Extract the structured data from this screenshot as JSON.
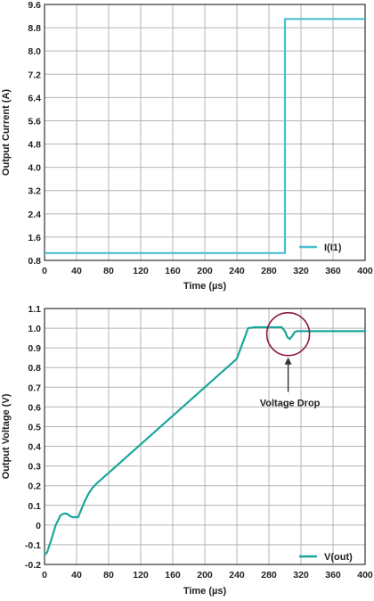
{
  "colors": {
    "series": "#1aa79a",
    "legend_i": "#48c0cf",
    "grid": "#b4b4b4",
    "frame": "#333333",
    "annotation": "#8b1a3a"
  },
  "chart_data": [
    {
      "type": "line",
      "xlabel": "Time (µs)",
      "ylabel": "Output Current (A)",
      "xlim": [
        0,
        400
      ],
      "ylim": [
        0.8,
        9.6
      ],
      "x_ticks": [
        "0",
        "40",
        "80",
        "120",
        "160",
        "200",
        "240",
        "280",
        "320",
        "360",
        "400"
      ],
      "y_ticks": [
        "0.8",
        "1.6",
        "2.4",
        "3.2",
        "4.0",
        "4.8",
        "5.6",
        "6.4",
        "7.2",
        "8.0",
        "8.8",
        "9.6"
      ],
      "grid": true,
      "legend_position": "bottom-right",
      "series": [
        {
          "name": "I(I1)",
          "x": [
            0,
            300,
            300,
            400
          ],
          "y": [
            1.05,
            1.05,
            9.1,
            9.1
          ]
        }
      ]
    },
    {
      "type": "line",
      "xlabel": "Time (µs)",
      "ylabel": "Output Voltage (V)",
      "xlim": [
        0,
        400
      ],
      "ylim": [
        -0.2,
        1.1
      ],
      "x_ticks": [
        "0",
        "40",
        "80",
        "120",
        "160",
        "200",
        "240",
        "280",
        "320",
        "360",
        "400"
      ],
      "y_ticks": [
        "-0.2",
        "-0.1",
        "0",
        "0.1",
        "0.2",
        "0.3",
        "0.4",
        "0.5",
        "0.6",
        "0.7",
        "0.8",
        "0.9",
        "1.0",
        "1.1"
      ],
      "grid": true,
      "legend_position": "bottom-right",
      "series": [
        {
          "name": "V(out)",
          "x": [
            0,
            3,
            8,
            14,
            20,
            24,
            28,
            32,
            35,
            38,
            42,
            46,
            50,
            55,
            60,
            66,
            80,
            120,
            160,
            200,
            240,
            254,
            262,
            296,
            300,
            303,
            306,
            309,
            312,
            315,
            320,
            400
          ],
          "y": [
            -0.15,
            -0.14,
            -0.08,
            0.0,
            0.05,
            0.058,
            0.058,
            0.045,
            0.04,
            0.04,
            0.04,
            0.08,
            0.12,
            0.16,
            0.19,
            0.215,
            0.265,
            0.41,
            0.555,
            0.7,
            0.845,
            1.0,
            1.005,
            1.005,
            0.985,
            0.955,
            0.945,
            0.96,
            0.98,
            0.985,
            0.985,
            0.985
          ]
        }
      ],
      "annotations": [
        {
          "label": "Voltage Drop",
          "x": 304,
          "y": 0.97
        }
      ]
    }
  ]
}
